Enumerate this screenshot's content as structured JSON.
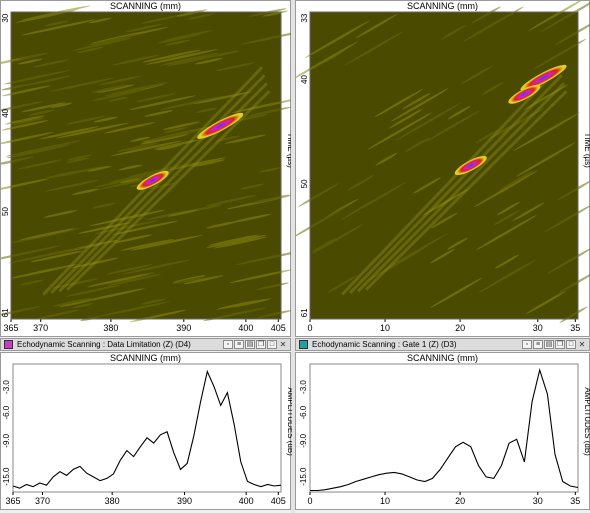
{
  "scan_left": {
    "title": "SCANNING (mm)",
    "right_label": "TIME (µs)",
    "y_ticks": [
      "30",
      "40",
      "50",
      "61"
    ],
    "x_ticks": [
      "365",
      "370",
      "380",
      "390",
      "400",
      "405"
    ],
    "background_color": "#4a4a00",
    "flaws": [
      {
        "x": 396,
        "t": 41.5
      },
      {
        "x": 386,
        "t": 47.0
      }
    ]
  },
  "scan_right": {
    "title": "SCANNING (mm)",
    "right_label": "TIME (µs)",
    "y_ticks": [
      "33",
      "40",
      "50",
      "61"
    ],
    "x_ticks": [
      "0",
      "10",
      "20",
      "30",
      "35"
    ],
    "background_color": "#4a4a00",
    "flaws": [
      {
        "x": 30.5,
        "t": 39.0
      },
      {
        "x": 28.0,
        "t": 40.5
      },
      {
        "x": 21.0,
        "t": 47.0
      }
    ]
  },
  "left_bar": {
    "label": "Echodynamic Scanning  : Data Limitation (Z) (D4)",
    "icon_color": "#c040c0"
  },
  "right_bar": {
    "label": "Echodynamic Scanning  : Gate 1 (Z) (D3)",
    "icon_color": "#20a0a0"
  },
  "echo_left": {
    "title": "SCANNING (mm)",
    "right_label": "AMPLITUDES (dB)",
    "y_ticks": [
      "-3.0",
      "-6.0",
      "-9.0",
      "-15.0"
    ],
    "x_ticks": [
      "365",
      "370",
      "380",
      "390",
      "400",
      "405"
    ]
  },
  "echo_right": {
    "title": "SCANNING (mm)",
    "right_label": "AMPLITUDES (dB)",
    "y_ticks": [
      "-3.0",
      "-6.0",
      "-9.0",
      "-15.0"
    ],
    "x_ticks": [
      "0",
      "10",
      "20",
      "30",
      "35"
    ]
  },
  "chart_data": [
    {
      "type": "line",
      "name": "Echodynamic Scanning : Data Limitation (Z) (D4)",
      "xlabel": "SCANNING (mm)",
      "ylabel": "AMPLITUDES (dB)",
      "xlim": [
        365,
        405
      ],
      "ylim": [
        -17,
        0
      ],
      "x": [
        365,
        366,
        367,
        368,
        369,
        370,
        371,
        372,
        373,
        374,
        375,
        376,
        377,
        378,
        379,
        380,
        381,
        382,
        383,
        384,
        385,
        386,
        387,
        388,
        389,
        390,
        391,
        392,
        393,
        394,
        395,
        396,
        397,
        398,
        399,
        400,
        401,
        402,
        403,
        404,
        405
      ],
      "y": [
        -16.2,
        -16.5,
        -16.0,
        -16.3,
        -15.8,
        -16.1,
        -15.0,
        -14.3,
        -14.8,
        -14.0,
        -13.6,
        -14.5,
        -15.0,
        -15.5,
        -15.2,
        -14.6,
        -12.8,
        -11.5,
        -12.3,
        -11.0,
        -9.8,
        -10.5,
        -9.4,
        -9.0,
        -11.8,
        -14.0,
        -13.2,
        -9.5,
        -5.0,
        -1.0,
        -3.0,
        -5.5,
        -3.8,
        -8.0,
        -13.0,
        -15.6,
        -16.0,
        -16.3,
        -16.0,
        -16.2,
        -16.1
      ]
    },
    {
      "type": "line",
      "name": "Echodynamic Scanning : Gate 1 (Z) (D3)",
      "xlabel": "SCANNING (mm)",
      "ylabel": "AMPLITUDES (dB)",
      "xlim": [
        0,
        35
      ],
      "ylim": [
        -17,
        0
      ],
      "x": [
        0,
        1,
        2,
        3,
        4,
        5,
        6,
        7,
        8,
        9,
        10,
        11,
        12,
        13,
        14,
        15,
        16,
        17,
        18,
        19,
        20,
        21,
        22,
        23,
        24,
        25,
        26,
        27,
        28,
        29,
        30,
        31,
        32,
        33,
        34,
        35
      ],
      "y": [
        -16.8,
        -16.8,
        -16.7,
        -16.5,
        -16.3,
        -16.0,
        -15.6,
        -15.3,
        -15.0,
        -14.7,
        -14.5,
        -14.4,
        -14.6,
        -15.0,
        -15.4,
        -15.6,
        -15.2,
        -14.0,
        -12.5,
        -11.0,
        -10.4,
        -11.0,
        -13.5,
        -15.0,
        -15.2,
        -13.5,
        -10.5,
        -10.0,
        -13.0,
        -5.0,
        -0.8,
        -4.0,
        -12.0,
        -15.6,
        -16.2,
        -16.4
      ]
    }
  ]
}
